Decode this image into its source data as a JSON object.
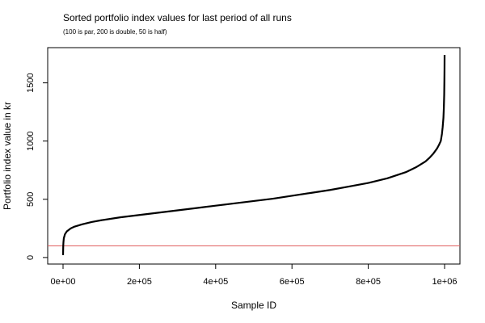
{
  "chart_data": {
    "type": "scatter",
    "title": "Sorted portfolio index values for last period of all runs",
    "subtitle": "(100 is par, 200 is double, 50 is half)",
    "xlabel": "Sample ID",
    "ylabel": "Portfolio index value in kr",
    "xlim": [
      0,
      1000000
    ],
    "ylim": [
      20,
      1740
    ],
    "x_ticks": [
      {
        "value": 0,
        "label": "0e+00"
      },
      {
        "value": 200000,
        "label": "2e+05"
      },
      {
        "value": 400000,
        "label": "4e+05"
      },
      {
        "value": 600000,
        "label": "6e+05"
      },
      {
        "value": 800000,
        "label": "8e+05"
      },
      {
        "value": 1000000,
        "label": "1e+06"
      }
    ],
    "y_ticks": [
      {
        "value": 0,
        "label": "0"
      },
      {
        "value": 500,
        "label": "500"
      },
      {
        "value": 1000,
        "label": "1000"
      },
      {
        "value": 1500,
        "label": "1500"
      }
    ],
    "grid": false,
    "reference_line": {
      "y": 100,
      "color": "#e06060"
    },
    "series": [
      {
        "color": "#000000",
        "x": [
          0,
          500,
          1000,
          2000,
          5000,
          10000,
          20000,
          30000,
          50000,
          75000,
          100000,
          150000,
          200000,
          250000,
          300000,
          350000,
          400000,
          450000,
          500000,
          550000,
          600000,
          650000,
          700000,
          750000,
          800000,
          850000,
          900000,
          925000,
          950000,
          960000,
          970000,
          980000,
          985000,
          990000,
          993000,
          995000,
          997000,
          998000,
          999000,
          999500,
          999800,
          1000000
        ],
        "y": [
          20,
          100,
          130,
          165,
          200,
          225,
          250,
          265,
          285,
          305,
          320,
          345,
          365,
          385,
          405,
          425,
          445,
          465,
          485,
          505,
          530,
          555,
          580,
          610,
          640,
          680,
          735,
          775,
          825,
          855,
          890,
          935,
          965,
          1000,
          1060,
          1120,
          1200,
          1280,
          1400,
          1520,
          1620,
          1740
        ]
      }
    ]
  }
}
